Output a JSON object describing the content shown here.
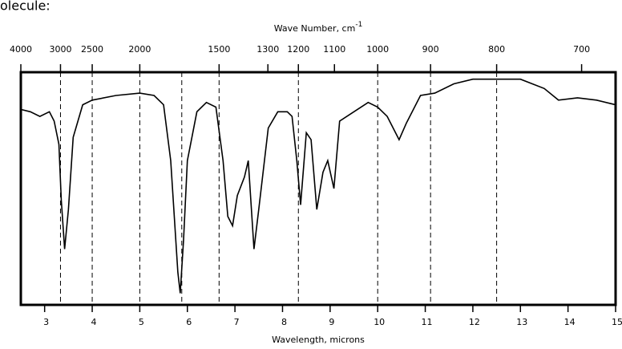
{
  "chart_data": {
    "type": "line",
    "corner_text": "olecule:",
    "title": "Wave Number, cm",
    "title_superscript": "-1",
    "xlabel": "Wavelength, microns",
    "xlim": [
      2.5,
      15
    ],
    "xticks": [
      3,
      4,
      5,
      6,
      7,
      8,
      9,
      10,
      11,
      12,
      13,
      14,
      15
    ],
    "ylim": [
      0,
      100
    ],
    "top_ticks": [
      4000,
      3000,
      2500,
      2000,
      1500,
      1300,
      1200,
      1100,
      1000,
      900,
      800,
      700
    ],
    "reference_lines": [
      3000,
      2500,
      2000,
      1700,
      1500,
      1200,
      1000,
      900,
      800
    ],
    "color": "#000000",
    "x": [
      2.5,
      2.7,
      2.9,
      3.1,
      3.2,
      3.3,
      3.35,
      3.42,
      3.5,
      3.6,
      3.8,
      4.0,
      4.5,
      5.0,
      5.3,
      5.5,
      5.65,
      5.8,
      5.85,
      5.92,
      6.0,
      6.2,
      6.4,
      6.6,
      6.75,
      6.85,
      6.95,
      7.05,
      7.2,
      7.28,
      7.4,
      7.5,
      7.7,
      7.9,
      8.1,
      8.2,
      8.3,
      8.38,
      8.5,
      8.6,
      8.72,
      8.85,
      8.95,
      9.08,
      9.2,
      9.5,
      9.8,
      10.0,
      10.2,
      10.45,
      10.6,
      10.9,
      11.2,
      11.6,
      12.0,
      12.5,
      13.0,
      13.5,
      13.8,
      14.2,
      14.6,
      15
    ],
    "values": [
      84,
      83,
      81,
      83,
      79,
      69,
      45,
      24,
      41,
      72,
      86,
      88,
      90,
      91,
      90,
      86,
      62,
      14,
      5,
      28,
      62,
      83,
      87,
      85,
      62,
      38,
      34,
      47,
      55,
      62,
      24,
      41,
      76,
      83,
      83,
      81,
      62,
      43,
      74,
      71,
      41,
      57,
      62,
      50,
      79,
      83,
      87,
      85,
      81,
      71,
      78,
      90,
      91,
      95,
      97,
      97,
      97,
      93,
      88,
      89,
      88,
      86
    ]
  }
}
